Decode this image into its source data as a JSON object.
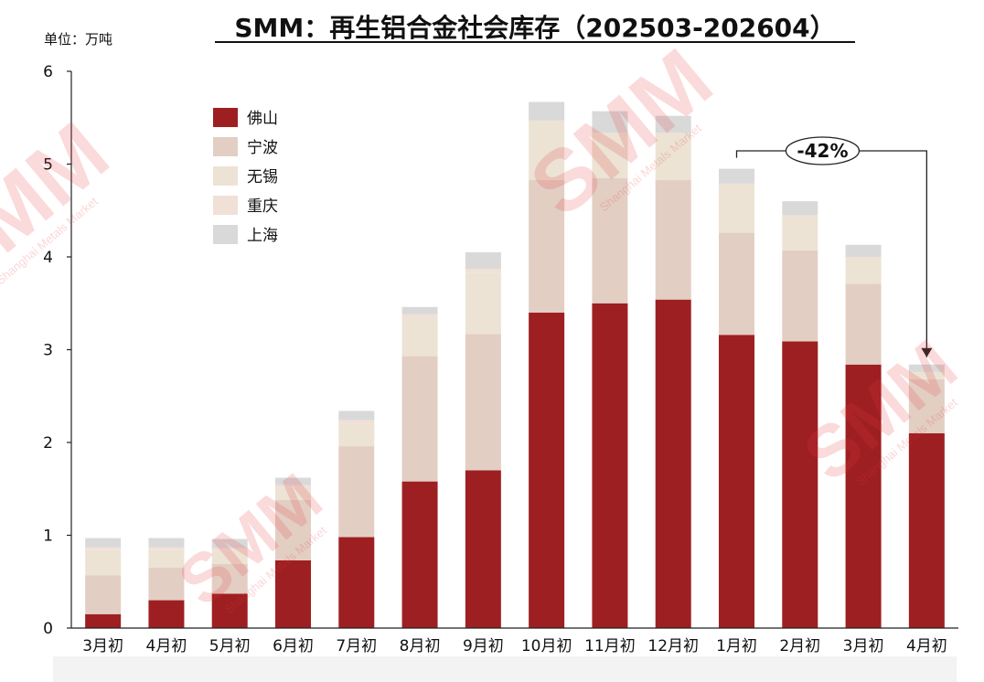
{
  "chart_data": {
    "type": "bar",
    "stacked": true,
    "title": "SMM：再生铝合金社会库存（202503-202604）",
    "unit_label": "单位：万吨",
    "categories": [
      "3月初",
      "4月初",
      "5月初",
      "6月初",
      "7月初",
      "8月初",
      "9月初",
      "10月初",
      "11月初",
      "12月初",
      "1月初",
      "2月初",
      "3月初",
      "4月初"
    ],
    "ylim": [
      0,
      6
    ],
    "yticks": [
      0,
      1,
      2,
      3,
      4,
      5,
      6
    ],
    "grid": false,
    "legend_position": "top-left",
    "series": [
      {
        "name": "佛山",
        "color": "#9e1f22",
        "values": [
          0.15,
          0.3,
          0.37,
          0.73,
          0.98,
          1.58,
          1.7,
          3.4,
          3.5,
          3.54,
          3.16,
          3.09,
          2.84,
          2.1
        ]
      },
      {
        "name": "宁波",
        "color": "#e3cec4",
        "values": [
          0.42,
          0.35,
          0.32,
          0.65,
          0.98,
          1.35,
          1.47,
          1.43,
          1.35,
          1.29,
          1.1,
          0.98,
          0.87,
          0.58
        ]
      },
      {
        "name": "无锡",
        "color": "#ece3d5",
        "values": [
          0.27,
          0.19,
          0.14,
          0.13,
          0.24,
          0.42,
          0.66,
          0.64,
          0.49,
          0.51,
          0.53,
          0.38,
          0.29,
          0.08
        ]
      },
      {
        "name": "重庆",
        "color": "#f1e0d6",
        "values": [
          0.03,
          0.03,
          0.03,
          0.03,
          0.04,
          0.03,
          0.04,
          0.0,
          0.0,
          0.0,
          0.0,
          0.0,
          0.0,
          0.0
        ]
      },
      {
        "name": "上海",
        "color": "#d9d9d9",
        "values": [
          0.1,
          0.1,
          0.1,
          0.08,
          0.1,
          0.08,
          0.18,
          0.2,
          0.23,
          0.18,
          0.16,
          0.15,
          0.13,
          0.08
        ]
      }
    ],
    "annotation": {
      "text": "-42%",
      "from_category_index": 10,
      "to_category_index": 13
    }
  },
  "watermark": {
    "text": "SMM",
    "subtext": "Shanghai Metals Market",
    "color": "#e43a3a"
  }
}
